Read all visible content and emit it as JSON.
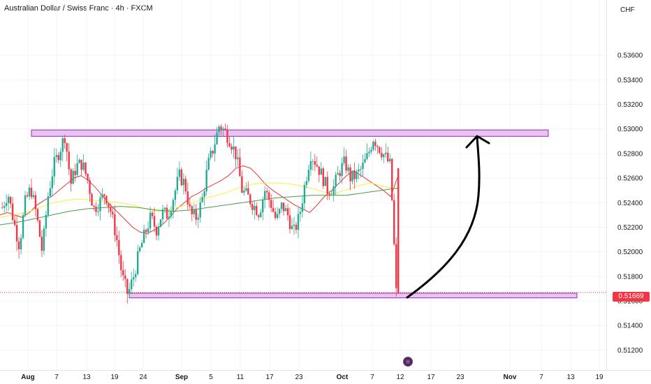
{
  "header": {
    "title": "Australian Dollar / Swiss Franc · 4h · FXCM",
    "currency": "CHF"
  },
  "price_badge": "0.51669",
  "colors": {
    "up": "#22ab94",
    "down": "#f23645",
    "ma_fast": "#e53935",
    "ma_mid": "#ffeb3b",
    "ma_slow": "#43a047",
    "zone_fill": "#e6c6f1",
    "zone_border": "#9c27b0",
    "grid": "#f0f3fa",
    "arrow": "#000000"
  },
  "icons": {
    "event_marker": "australia-flag-icon"
  },
  "chart_data": {
    "type": "candlestick",
    "title": "Australian Dollar / Swiss Franc · 4h · FXCM",
    "ylabel": "CHF",
    "ylim": [
      0.5112,
      0.5378
    ],
    "y_ticks": [
      "0.53600",
      "0.53400",
      "0.53200",
      "0.53000",
      "0.52800",
      "0.52600",
      "0.52400",
      "0.52200",
      "0.52000",
      "0.51800",
      "0.51600",
      "0.51400",
      "0.51200"
    ],
    "x_ticks": [
      {
        "label": "Aug",
        "month": true
      },
      {
        "label": "7",
        "month": false
      },
      {
        "label": "13",
        "month": false
      },
      {
        "label": "19",
        "month": false
      },
      {
        "label": "24",
        "month": false
      },
      {
        "label": "Sep",
        "month": true
      },
      {
        "label": "5",
        "month": false
      },
      {
        "label": "11",
        "month": false
      },
      {
        "label": "17",
        "month": false
      },
      {
        "label": "23",
        "month": false
      },
      {
        "label": "Oct",
        "month": true
      },
      {
        "label": "7",
        "month": false
      },
      {
        "label": "12",
        "month": false
      },
      {
        "label": "17",
        "month": false
      },
      {
        "label": "23",
        "month": false
      },
      {
        "label": "Nov",
        "month": true
      },
      {
        "label": "7",
        "month": false
      },
      {
        "label": "13",
        "month": false
      },
      {
        "label": "19",
        "month": false
      }
    ],
    "last_price": 0.51669,
    "grid": true,
    "price_path": [
      0.5236,
      0.5248,
      0.5225,
      0.5205,
      0.524,
      0.5252,
      0.523,
      0.52,
      0.5245,
      0.527,
      0.5282,
      0.5295,
      0.5255,
      0.527,
      0.5272,
      0.5258,
      0.5235,
      0.524,
      0.5248,
      0.5233,
      0.5212,
      0.518,
      0.5165,
      0.518,
      0.52,
      0.5215,
      0.5228,
      0.5218,
      0.5232,
      0.523,
      0.5245,
      0.5262,
      0.5255,
      0.523,
      0.5228,
      0.5242,
      0.527,
      0.5285,
      0.5303,
      0.5298,
      0.529,
      0.5278,
      0.525,
      0.5245,
      0.5238,
      0.5232,
      0.525,
      0.524,
      0.5225,
      0.5238,
      0.523,
      0.5215,
      0.5228,
      0.5255,
      0.528,
      0.5272,
      0.5262,
      0.525,
      0.5252,
      0.5265,
      0.5273,
      0.526,
      0.5262,
      0.5268,
      0.5278,
      0.5293,
      0.5285,
      0.5278,
      0.527,
      0.5167
    ],
    "ma_fast": [
      0.523,
      0.5232,
      0.523,
      0.5228,
      0.5232,
      0.5238,
      0.5242,
      0.5245,
      0.525,
      0.5255,
      0.526,
      0.5262,
      0.5258,
      0.5252,
      0.5245,
      0.5238,
      0.5232,
      0.5226,
      0.522,
      0.5216,
      0.5215,
      0.5218,
      0.5222,
      0.5228,
      0.5235,
      0.524,
      0.5245,
      0.5248,
      0.5252,
      0.5255,
      0.5258,
      0.5262,
      0.5268,
      0.527,
      0.5268,
      0.5262,
      0.5255,
      0.525,
      0.5246,
      0.5242,
      0.5238,
      0.5235,
      0.5232,
      0.5238,
      0.5245,
      0.525,
      0.5256,
      0.5262,
      0.5266,
      0.5262,
      0.5258,
      0.5254,
      0.525,
      0.5245,
      0.5262
    ],
    "ma_mid": [
      0.5228,
      0.523,
      0.5232,
      0.5236,
      0.524,
      0.5242,
      0.5243,
      0.5242,
      0.5241,
      0.524,
      0.5238,
      0.5235,
      0.5233,
      0.5235,
      0.5238,
      0.5242,
      0.5245,
      0.5248,
      0.5252,
      0.5255,
      0.5256,
      0.5256,
      0.5255,
      0.5253,
      0.525,
      0.5247,
      0.525,
      0.5254,
      0.5256,
      0.5253,
      0.5251
    ],
    "ma_slow": [
      0.5222,
      0.5224,
      0.5227,
      0.523,
      0.5233,
      0.5235,
      0.5236,
      0.5237,
      0.5236,
      0.5234,
      0.5233,
      0.5234,
      0.5236,
      0.5238,
      0.524,
      0.5242,
      0.5244,
      0.5245,
      0.5246,
      0.5246,
      0.5246,
      0.5248,
      0.525,
      0.5252
    ]
  },
  "annotations": {
    "resistance_zone": [
      0.5294,
      0.52992
    ],
    "support_zone": [
      0.51625,
      0.51663
    ]
  }
}
